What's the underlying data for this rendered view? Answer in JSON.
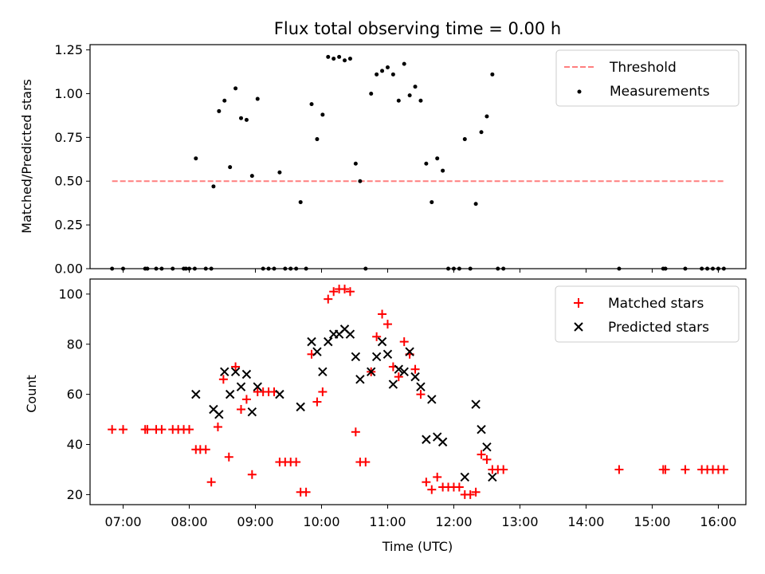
{
  "chart_data": [
    {
      "type": "scatter",
      "title": "Flux total observing time = 0.00 h",
      "xlabel": "",
      "ylabel": "Matched/Predicted stars",
      "ylim": [
        0,
        1.28
      ],
      "yticks": [
        "0.00",
        "0.25",
        "0.50",
        "0.75",
        "1.00",
        "1.25"
      ],
      "legend": {
        "position": "top-right"
      },
      "series": [
        {
          "name": "Threshold",
          "kind": "line",
          "style": "dashed",
          "color": "#ff7f7f",
          "points": [
            {
              "x": "06:50",
              "y": 0.5
            },
            {
              "x": "16:05",
              "y": 0.5
            }
          ]
        },
        {
          "name": "Measurements",
          "kind": "dot",
          "color": "#000000",
          "points": [
            {
              "x": "06:50",
              "y": 0
            },
            {
              "x": "07:00",
              "y": 0
            },
            {
              "x": "07:20",
              "y": 0
            },
            {
              "x": "07:22",
              "y": 0
            },
            {
              "x": "07:30",
              "y": 0
            },
            {
              "x": "07:35",
              "y": 0
            },
            {
              "x": "07:45",
              "y": 0
            },
            {
              "x": "07:55",
              "y": 0
            },
            {
              "x": "07:57",
              "y": 0
            },
            {
              "x": "08:00",
              "y": 0
            },
            {
              "x": "08:05",
              "y": 0
            },
            {
              "x": "08:06",
              "y": 0.63
            },
            {
              "x": "08:15",
              "y": 0
            },
            {
              "x": "08:20",
              "y": 0
            },
            {
              "x": "08:22",
              "y": 0.47
            },
            {
              "x": "08:27",
              "y": 0.9
            },
            {
              "x": "08:32",
              "y": 0.96
            },
            {
              "x": "08:37",
              "y": 0.58
            },
            {
              "x": "08:42",
              "y": 1.03
            },
            {
              "x": "08:47",
              "y": 0.86
            },
            {
              "x": "08:52",
              "y": 0.85
            },
            {
              "x": "08:57",
              "y": 0.53
            },
            {
              "x": "09:02",
              "y": 0.97
            },
            {
              "x": "09:07",
              "y": 0
            },
            {
              "x": "09:12",
              "y": 0
            },
            {
              "x": "09:17",
              "y": 0
            },
            {
              "x": "09:22",
              "y": 0.55
            },
            {
              "x": "09:27",
              "y": 0
            },
            {
              "x": "09:32",
              "y": 0
            },
            {
              "x": "09:37",
              "y": 0
            },
            {
              "x": "09:41",
              "y": 0.38
            },
            {
              "x": "09:46",
              "y": 0
            },
            {
              "x": "09:51",
              "y": 0.94
            },
            {
              "x": "09:56",
              "y": 0.74
            },
            {
              "x": "10:01",
              "y": 0.88
            },
            {
              "x": "10:06",
              "y": 1.21
            },
            {
              "x": "10:11",
              "y": 1.2
            },
            {
              "x": "10:16",
              "y": 1.21
            },
            {
              "x": "10:21",
              "y": 1.19
            },
            {
              "x": "10:26",
              "y": 1.2
            },
            {
              "x": "10:31",
              "y": 0.6
            },
            {
              "x": "10:35",
              "y": 0.5
            },
            {
              "x": "10:40",
              "y": 0
            },
            {
              "x": "10:45",
              "y": 1.0
            },
            {
              "x": "10:50",
              "y": 1.11
            },
            {
              "x": "10:55",
              "y": 1.13
            },
            {
              "x": "11:00",
              "y": 1.15
            },
            {
              "x": "11:05",
              "y": 1.11
            },
            {
              "x": "11:10",
              "y": 0.96
            },
            {
              "x": "11:15",
              "y": 1.17
            },
            {
              "x": "11:20",
              "y": 0.99
            },
            {
              "x": "11:25",
              "y": 1.04
            },
            {
              "x": "11:30",
              "y": 0.96
            },
            {
              "x": "11:35",
              "y": 0.6
            },
            {
              "x": "11:40",
              "y": 0.38
            },
            {
              "x": "11:45",
              "y": 0.63
            },
            {
              "x": "11:50",
              "y": 0.56
            },
            {
              "x": "11:55",
              "y": 0
            },
            {
              "x": "12:00",
              "y": 0
            },
            {
              "x": "12:05",
              "y": 0
            },
            {
              "x": "12:10",
              "y": 0.74
            },
            {
              "x": "12:15",
              "y": 0
            },
            {
              "x": "12:20",
              "y": 0.37
            },
            {
              "x": "12:25",
              "y": 0.78
            },
            {
              "x": "12:30",
              "y": 0.87
            },
            {
              "x": "12:35",
              "y": 1.11
            },
            {
              "x": "12:40",
              "y": 0
            },
            {
              "x": "12:45",
              "y": 0
            },
            {
              "x": "14:30",
              "y": 0
            },
            {
              "x": "15:10",
              "y": 0
            },
            {
              "x": "15:12",
              "y": 0
            },
            {
              "x": "15:30",
              "y": 0
            },
            {
              "x": "15:45",
              "y": 0
            },
            {
              "x": "15:50",
              "y": 0
            },
            {
              "x": "15:55",
              "y": 0
            },
            {
              "x": "16:00",
              "y": 0
            },
            {
              "x": "16:05",
              "y": 0
            }
          ]
        }
      ]
    },
    {
      "type": "scatter",
      "title": "",
      "xlabel": "Time (UTC)",
      "ylabel": "Count",
      "ylim": [
        16,
        106
      ],
      "yticks": [
        "20",
        "40",
        "60",
        "80",
        "100"
      ],
      "xticks": [
        "07:00",
        "08:00",
        "09:00",
        "10:00",
        "11:00",
        "12:00",
        "13:00",
        "14:00",
        "15:00",
        "16:00"
      ],
      "xlim": [
        "06:30",
        "16:25"
      ],
      "legend": {
        "position": "top-right"
      },
      "series": [
        {
          "name": "Matched stars",
          "kind": "plus",
          "color": "#ff0000",
          "points": [
            {
              "x": "06:50",
              "y": 46
            },
            {
              "x": "07:00",
              "y": 46
            },
            {
              "x": "07:20",
              "y": 46
            },
            {
              "x": "07:22",
              "y": 46
            },
            {
              "x": "07:30",
              "y": 46
            },
            {
              "x": "07:35",
              "y": 46
            },
            {
              "x": "07:45",
              "y": 46
            },
            {
              "x": "07:50",
              "y": 46
            },
            {
              "x": "07:55",
              "y": 46
            },
            {
              "x": "08:00",
              "y": 46
            },
            {
              "x": "08:06",
              "y": 38
            },
            {
              "x": "08:10",
              "y": 38
            },
            {
              "x": "08:15",
              "y": 38
            },
            {
              "x": "08:20",
              "y": 25
            },
            {
              "x": "08:26",
              "y": 47
            },
            {
              "x": "08:31",
              "y": 66
            },
            {
              "x": "08:36",
              "y": 35
            },
            {
              "x": "08:42",
              "y": 71
            },
            {
              "x": "08:47",
              "y": 54
            },
            {
              "x": "08:52",
              "y": 58
            },
            {
              "x": "08:57",
              "y": 28
            },
            {
              "x": "09:02",
              "y": 61
            },
            {
              "x": "09:07",
              "y": 61
            },
            {
              "x": "09:12",
              "y": 61
            },
            {
              "x": "09:17",
              "y": 61
            },
            {
              "x": "09:22",
              "y": 33
            },
            {
              "x": "09:27",
              "y": 33
            },
            {
              "x": "09:32",
              "y": 33
            },
            {
              "x": "09:37",
              "y": 33
            },
            {
              "x": "09:41",
              "y": 21
            },
            {
              "x": "09:46",
              "y": 21
            },
            {
              "x": "09:51",
              "y": 76
            },
            {
              "x": "09:56",
              "y": 57
            },
            {
              "x": "10:01",
              "y": 61
            },
            {
              "x": "10:06",
              "y": 98
            },
            {
              "x": "10:11",
              "y": 101
            },
            {
              "x": "10:16",
              "y": 102
            },
            {
              "x": "10:21",
              "y": 102
            },
            {
              "x": "10:26",
              "y": 101
            },
            {
              "x": "10:31",
              "y": 45
            },
            {
              "x": "10:35",
              "y": 33
            },
            {
              "x": "10:40",
              "y": 33
            },
            {
              "x": "10:45",
              "y": 69
            },
            {
              "x": "10:50",
              "y": 83
            },
            {
              "x": "10:55",
              "y": 92
            },
            {
              "x": "11:00",
              "y": 88
            },
            {
              "x": "11:05",
              "y": 71
            },
            {
              "x": "11:10",
              "y": 67
            },
            {
              "x": "11:15",
              "y": 81
            },
            {
              "x": "11:20",
              "y": 76
            },
            {
              "x": "11:25",
              "y": 70
            },
            {
              "x": "11:30",
              "y": 60
            },
            {
              "x": "11:35",
              "y": 25
            },
            {
              "x": "11:40",
              "y": 22
            },
            {
              "x": "11:45",
              "y": 27
            },
            {
              "x": "11:50",
              "y": 23
            },
            {
              "x": "11:55",
              "y": 23
            },
            {
              "x": "12:00",
              "y": 23
            },
            {
              "x": "12:05",
              "y": 23
            },
            {
              "x": "12:10",
              "y": 20
            },
            {
              "x": "12:15",
              "y": 20
            },
            {
              "x": "12:20",
              "y": 21
            },
            {
              "x": "12:25",
              "y": 36
            },
            {
              "x": "12:30",
              "y": 34
            },
            {
              "x": "12:35",
              "y": 30
            },
            {
              "x": "12:40",
              "y": 30
            },
            {
              "x": "12:45",
              "y": 30
            },
            {
              "x": "14:30",
              "y": 30
            },
            {
              "x": "15:10",
              "y": 30
            },
            {
              "x": "15:12",
              "y": 30
            },
            {
              "x": "15:30",
              "y": 30
            },
            {
              "x": "15:45",
              "y": 30
            },
            {
              "x": "15:50",
              "y": 30
            },
            {
              "x": "15:55",
              "y": 30
            },
            {
              "x": "16:00",
              "y": 30
            },
            {
              "x": "16:05",
              "y": 30
            }
          ]
        },
        {
          "name": "Predicted stars",
          "kind": "x",
          "color": "#000000",
          "points": [
            {
              "x": "08:06",
              "y": 60
            },
            {
              "x": "08:22",
              "y": 54
            },
            {
              "x": "08:27",
              "y": 52
            },
            {
              "x": "08:32",
              "y": 69
            },
            {
              "x": "08:37",
              "y": 60
            },
            {
              "x": "08:42",
              "y": 69
            },
            {
              "x": "08:47",
              "y": 63
            },
            {
              "x": "08:52",
              "y": 68
            },
            {
              "x": "08:57",
              "y": 53
            },
            {
              "x": "09:02",
              "y": 63
            },
            {
              "x": "09:22",
              "y": 60
            },
            {
              "x": "09:41",
              "y": 55
            },
            {
              "x": "09:51",
              "y": 81
            },
            {
              "x": "09:56",
              "y": 77
            },
            {
              "x": "10:01",
              "y": 69
            },
            {
              "x": "10:06",
              "y": 81
            },
            {
              "x": "10:11",
              "y": 84
            },
            {
              "x": "10:16",
              "y": 84
            },
            {
              "x": "10:21",
              "y": 86
            },
            {
              "x": "10:26",
              "y": 84
            },
            {
              "x": "10:31",
              "y": 75
            },
            {
              "x": "10:35",
              "y": 66
            },
            {
              "x": "10:45",
              "y": 69
            },
            {
              "x": "10:50",
              "y": 75
            },
            {
              "x": "10:55",
              "y": 81
            },
            {
              "x": "11:00",
              "y": 76
            },
            {
              "x": "11:05",
              "y": 64
            },
            {
              "x": "11:10",
              "y": 70
            },
            {
              "x": "11:15",
              "y": 69
            },
            {
              "x": "11:20",
              "y": 77
            },
            {
              "x": "11:25",
              "y": 67
            },
            {
              "x": "11:30",
              "y": 63
            },
            {
              "x": "11:35",
              "y": 42
            },
            {
              "x": "11:40",
              "y": 58
            },
            {
              "x": "11:45",
              "y": 43
            },
            {
              "x": "11:50",
              "y": 41
            },
            {
              "x": "12:10",
              "y": 27
            },
            {
              "x": "12:20",
              "y": 56
            },
            {
              "x": "12:25",
              "y": 46
            },
            {
              "x": "12:30",
              "y": 39
            },
            {
              "x": "12:35",
              "y": 27
            }
          ]
        }
      ]
    }
  ]
}
